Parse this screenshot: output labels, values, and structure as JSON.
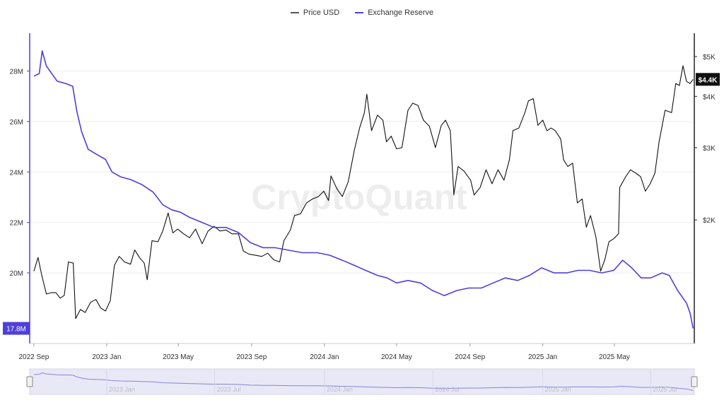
{
  "chart_data": {
    "type": "line",
    "watermark": "CryptoQuant",
    "series": [
      {
        "name": "Price USD",
        "axis": "right",
        "color": "#111111",
        "points": [
          [
            "2022-09-01",
            1500
          ],
          [
            "2022-09-08",
            1620
          ],
          [
            "2022-09-14",
            1470
          ],
          [
            "2022-09-22",
            1320
          ],
          [
            "2022-09-30",
            1330
          ],
          [
            "2022-10-08",
            1330
          ],
          [
            "2022-10-15",
            1290
          ],
          [
            "2022-10-22",
            1310
          ],
          [
            "2022-10-29",
            1580
          ],
          [
            "2022-11-06",
            1570
          ],
          [
            "2022-11-10",
            1150
          ],
          [
            "2022-11-18",
            1210
          ],
          [
            "2022-11-26",
            1190
          ],
          [
            "2022-12-05",
            1260
          ],
          [
            "2022-12-14",
            1280
          ],
          [
            "2022-12-22",
            1220
          ],
          [
            "2022-12-30",
            1200
          ],
          [
            "2023-01-07",
            1270
          ],
          [
            "2023-01-14",
            1550
          ],
          [
            "2023-01-22",
            1630
          ],
          [
            "2023-01-31",
            1580
          ],
          [
            "2023-02-10",
            1560
          ],
          [
            "2023-02-17",
            1690
          ],
          [
            "2023-02-25",
            1620
          ],
          [
            "2023-03-05",
            1570
          ],
          [
            "2023-03-10",
            1430
          ],
          [
            "2023-03-18",
            1780
          ],
          [
            "2023-03-28",
            1770
          ],
          [
            "2023-04-05",
            1880
          ],
          [
            "2023-04-14",
            2080
          ],
          [
            "2023-04-22",
            1860
          ],
          [
            "2023-04-30",
            1900
          ],
          [
            "2023-05-10",
            1850
          ],
          [
            "2023-05-20",
            1810
          ],
          [
            "2023-05-30",
            1900
          ],
          [
            "2023-06-10",
            1750
          ],
          [
            "2023-06-20",
            1880
          ],
          [
            "2023-06-30",
            1930
          ],
          [
            "2023-07-10",
            1880
          ],
          [
            "2023-07-20",
            1890
          ],
          [
            "2023-07-30",
            1850
          ],
          [
            "2023-08-10",
            1850
          ],
          [
            "2023-08-18",
            1680
          ],
          [
            "2023-08-28",
            1650
          ],
          [
            "2023-09-08",
            1640
          ],
          [
            "2023-09-18",
            1630
          ],
          [
            "2023-09-28",
            1660
          ],
          [
            "2023-10-08",
            1600
          ],
          [
            "2023-10-18",
            1580
          ],
          [
            "2023-10-25",
            1780
          ],
          [
            "2023-11-05",
            1890
          ],
          [
            "2023-11-12",
            2050
          ],
          [
            "2023-11-22",
            2070
          ],
          [
            "2023-12-02",
            2200
          ],
          [
            "2023-12-12",
            2250
          ],
          [
            "2023-12-22",
            2280
          ],
          [
            "2023-12-31",
            2350
          ],
          [
            "2024-01-08",
            2230
          ],
          [
            "2024-01-12",
            2560
          ],
          [
            "2024-01-22",
            2380
          ],
          [
            "2024-01-31",
            2280
          ],
          [
            "2024-02-10",
            2480
          ],
          [
            "2024-02-20",
            2950
          ],
          [
            "2024-02-29",
            3350
          ],
          [
            "2024-03-08",
            3650
          ],
          [
            "2024-03-12",
            4050
          ],
          [
            "2024-03-20",
            3300
          ],
          [
            "2024-03-30",
            3600
          ],
          [
            "2024-04-08",
            3500
          ],
          [
            "2024-04-14",
            3100
          ],
          [
            "2024-04-22",
            3200
          ],
          [
            "2024-05-01",
            2980
          ],
          [
            "2024-05-10",
            3000
          ],
          [
            "2024-05-20",
            3700
          ],
          [
            "2024-05-28",
            3850
          ],
          [
            "2024-06-06",
            3800
          ],
          [
            "2024-06-15",
            3500
          ],
          [
            "2024-06-25",
            3380
          ],
          [
            "2024-07-05",
            3000
          ],
          [
            "2024-07-15",
            3400
          ],
          [
            "2024-07-22",
            3500
          ],
          [
            "2024-07-30",
            3300
          ],
          [
            "2024-08-05",
            2300
          ],
          [
            "2024-08-12",
            2700
          ],
          [
            "2024-08-22",
            2630
          ],
          [
            "2024-09-02",
            2500
          ],
          [
            "2024-09-08",
            2300
          ],
          [
            "2024-09-18",
            2400
          ],
          [
            "2024-09-28",
            2650
          ],
          [
            "2024-10-08",
            2450
          ],
          [
            "2024-10-18",
            2650
          ],
          [
            "2024-10-28",
            2500
          ],
          [
            "2024-11-06",
            2800
          ],
          [
            "2024-11-12",
            3300
          ],
          [
            "2024-11-22",
            3350
          ],
          [
            "2024-12-02",
            3650
          ],
          [
            "2024-12-08",
            3900
          ],
          [
            "2024-12-16",
            3950
          ],
          [
            "2024-12-24",
            3400
          ],
          [
            "2025-01-01",
            3500
          ],
          [
            "2025-01-08",
            3300
          ],
          [
            "2025-01-15",
            3350
          ],
          [
            "2025-01-22",
            3300
          ],
          [
            "2025-01-31",
            3150
          ],
          [
            "2025-02-05",
            2800
          ],
          [
            "2025-02-12",
            2700
          ],
          [
            "2025-02-20",
            2750
          ],
          [
            "2025-02-28",
            2200
          ],
          [
            "2025-03-08",
            2250
          ],
          [
            "2025-03-15",
            1920
          ],
          [
            "2025-03-22",
            2050
          ],
          [
            "2025-03-31",
            1820
          ],
          [
            "2025-04-08",
            1500
          ],
          [
            "2025-04-15",
            1600
          ],
          [
            "2025-04-22",
            1770
          ],
          [
            "2025-04-30",
            1800
          ],
          [
            "2025-05-08",
            1850
          ],
          [
            "2025-05-10",
            2400
          ],
          [
            "2025-05-20",
            2550
          ],
          [
            "2025-05-28",
            2650
          ],
          [
            "2025-06-06",
            2600
          ],
          [
            "2025-06-14",
            2550
          ],
          [
            "2025-06-22",
            2350
          ],
          [
            "2025-06-30",
            2450
          ],
          [
            "2025-07-08",
            2600
          ],
          [
            "2025-07-15",
            3100
          ],
          [
            "2025-07-25",
            3700
          ],
          [
            "2025-08-05",
            3650
          ],
          [
            "2025-08-12",
            4300
          ],
          [
            "2025-08-18",
            4250
          ],
          [
            "2025-08-24",
            4750
          ],
          [
            "2025-08-30",
            4350
          ],
          [
            "2025-09-05",
            4300
          ],
          [
            "2025-09-10",
            4400
          ]
        ]
      },
      {
        "name": "Exchange Reserve",
        "axis": "left",
        "color": "#4f3fd9",
        "points": [
          [
            "2022-09-01",
            27.8
          ],
          [
            "2022-09-10",
            27.9
          ],
          [
            "2022-09-15",
            28.8
          ],
          [
            "2022-09-22",
            28.2
          ],
          [
            "2022-10-01",
            27.9
          ],
          [
            "2022-10-10",
            27.6
          ],
          [
            "2022-10-25",
            27.5
          ],
          [
            "2022-11-05",
            27.4
          ],
          [
            "2022-11-12",
            26.4
          ],
          [
            "2022-11-20",
            25.6
          ],
          [
            "2022-12-01",
            24.9
          ],
          [
            "2022-12-15",
            24.7
          ],
          [
            "2022-12-30",
            24.5
          ],
          [
            "2023-01-10",
            24.0
          ],
          [
            "2023-01-25",
            23.8
          ],
          [
            "2023-02-10",
            23.7
          ],
          [
            "2023-03-01",
            23.5
          ],
          [
            "2023-03-20",
            23.2
          ],
          [
            "2023-04-05",
            22.7
          ],
          [
            "2023-04-20",
            22.5
          ],
          [
            "2023-05-05",
            22.4
          ],
          [
            "2023-05-20",
            22.2
          ],
          [
            "2023-06-10",
            22.0
          ],
          [
            "2023-06-30",
            21.8
          ],
          [
            "2023-07-20",
            21.8
          ],
          [
            "2023-08-10",
            21.6
          ],
          [
            "2023-08-30",
            21.2
          ],
          [
            "2023-09-20",
            21.0
          ],
          [
            "2023-10-10",
            21.0
          ],
          [
            "2023-11-01",
            20.9
          ],
          [
            "2023-11-25",
            20.8
          ],
          [
            "2023-12-20",
            20.8
          ],
          [
            "2024-01-10",
            20.7
          ],
          [
            "2024-01-31",
            20.5
          ],
          [
            "2024-02-20",
            20.3
          ],
          [
            "2024-03-10",
            20.1
          ],
          [
            "2024-03-30",
            19.9
          ],
          [
            "2024-04-15",
            19.8
          ],
          [
            "2024-05-01",
            19.6
          ],
          [
            "2024-05-20",
            19.7
          ],
          [
            "2024-06-10",
            19.6
          ],
          [
            "2024-06-30",
            19.3
          ],
          [
            "2024-07-20",
            19.1
          ],
          [
            "2024-08-10",
            19.3
          ],
          [
            "2024-08-30",
            19.4
          ],
          [
            "2024-09-20",
            19.4
          ],
          [
            "2024-10-10",
            19.6
          ],
          [
            "2024-10-30",
            19.8
          ],
          [
            "2024-11-20",
            19.7
          ],
          [
            "2024-12-10",
            19.9
          ],
          [
            "2024-12-30",
            20.2
          ],
          [
            "2025-01-20",
            20.0
          ],
          [
            "2025-02-10",
            20.0
          ],
          [
            "2025-03-01",
            20.1
          ],
          [
            "2025-03-20",
            20.1
          ],
          [
            "2025-04-10",
            20.0
          ],
          [
            "2025-04-30",
            20.1
          ],
          [
            "2025-05-15",
            20.5
          ],
          [
            "2025-05-30",
            20.2
          ],
          [
            "2025-06-15",
            19.8
          ],
          [
            "2025-07-01",
            19.8
          ],
          [
            "2025-07-20",
            20.0
          ],
          [
            "2025-08-01",
            19.9
          ],
          [
            "2025-08-15",
            19.3
          ],
          [
            "2025-08-30",
            18.8
          ],
          [
            "2025-09-05",
            18.4
          ],
          [
            "2025-09-10",
            17.8
          ]
        ]
      }
    ],
    "xlim": [
      "2022-08-25",
      "2025-09-12"
    ],
    "x_ticks": [
      {
        "date": "2022-09-01",
        "label": "2022 Sep"
      },
      {
        "date": "2023-01-01",
        "label": "2023 Jan"
      },
      {
        "date": "2023-05-01",
        "label": "2023 May"
      },
      {
        "date": "2023-09-01",
        "label": "2023 Sep"
      },
      {
        "date": "2024-01-01",
        "label": "2024 Jan"
      },
      {
        "date": "2024-05-01",
        "label": "2024 May"
      },
      {
        "date": "2024-09-01",
        "label": "2024 Sep"
      },
      {
        "date": "2025-01-01",
        "label": "2025 Jan"
      },
      {
        "date": "2025-05-01",
        "label": "2025 May"
      }
    ],
    "left_axis": {
      "unit": "M",
      "range": [
        17.2,
        29.5
      ],
      "ticks": [
        {
          "value": 20,
          "label": "20M"
        },
        {
          "value": 22,
          "label": "22M"
        },
        {
          "value": 24,
          "label": "24M"
        },
        {
          "value": 26,
          "label": "26M"
        },
        {
          "value": 28,
          "label": "28M"
        }
      ],
      "current_label": {
        "value": 17.8,
        "label": "17.8M"
      }
    },
    "right_axis": {
      "scale": "log",
      "range": [
        1000,
        5700
      ],
      "ticks": [
        {
          "value": 2000,
          "label": "$2K"
        },
        {
          "value": 3000,
          "label": "$3K"
        },
        {
          "value": 4000,
          "label": "$4K"
        },
        {
          "value": 5000,
          "label": "$5K"
        }
      ],
      "current_label": {
        "value": 4400,
        "label": "$4.4K"
      }
    },
    "grid": true,
    "legend_position": "top-center",
    "navigator": {
      "tick_labels": [
        {
          "date": "2023-01-01",
          "label": "2023 Jan"
        },
        {
          "date": "2023-07-01",
          "label": "2023 Jul"
        },
        {
          "date": "2024-01-01",
          "label": "2024 Jan"
        },
        {
          "date": "2024-07-01",
          "label": "2024 Jul"
        },
        {
          "date": "2025-01-01",
          "label": "2025 Jan"
        },
        {
          "date": "2025-07-01",
          "label": "2025 Jul"
        }
      ]
    }
  }
}
